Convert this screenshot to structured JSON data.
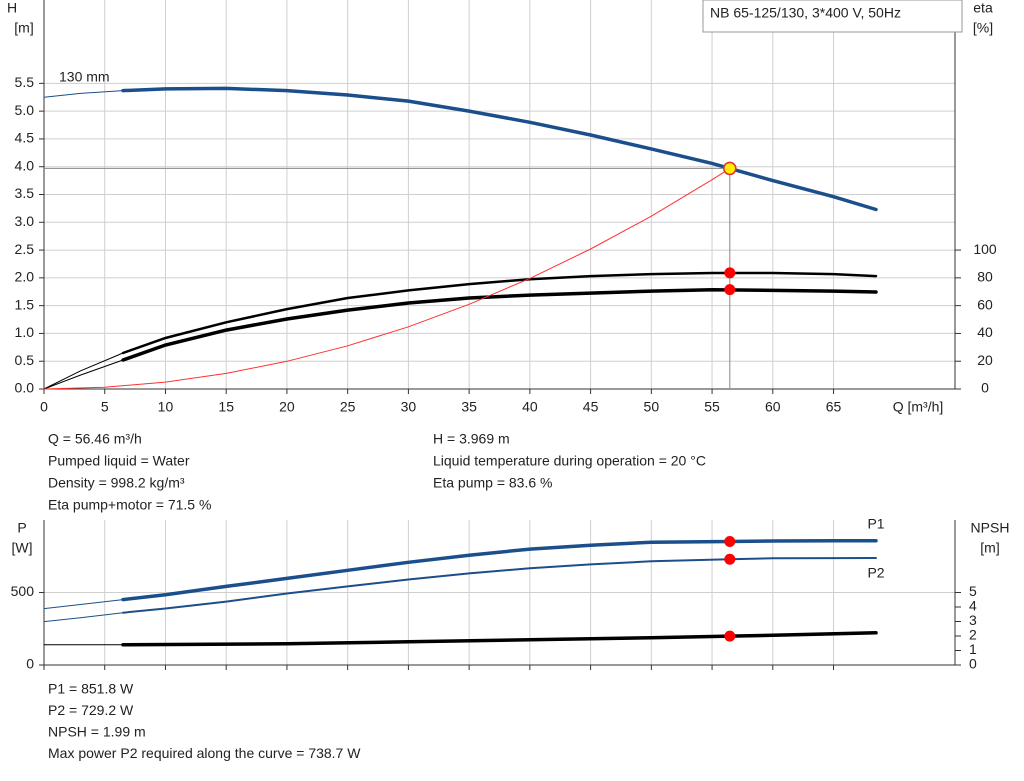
{
  "chart_data": [
    {
      "type": "line",
      "title": "NB 65-125/130, 3*400 V, 50Hz",
      "ylabel": "H",
      "yunit": "[m]",
      "y2label": "eta",
      "y2unit": "[%]",
      "xlabel": "Q [m³/h]",
      "xlim": [
        0,
        75
      ],
      "xticks": [
        0,
        5,
        10,
        15,
        20,
        25,
        30,
        35,
        40,
        45,
        50,
        55,
        60,
        65
      ],
      "ylim": [
        0,
        7
      ],
      "yticks": [
        {
          "value": 0,
          "label": "0.0"
        },
        0.5,
        {
          "value": 1,
          "label": "1.0"
        },
        1.5,
        {
          "value": 2,
          "label": "2.0"
        },
        2.5,
        {
          "value": 3,
          "label": "3.0"
        },
        3.5,
        {
          "value": 4,
          "label": "4.0"
        },
        4.5,
        {
          "value": 5,
          "label": "5.0"
        },
        5.5
      ],
      "y2lim": [
        0,
        280
      ],
      "y2ticks": [
        0,
        20,
        40,
        60,
        80,
        100
      ],
      "grid": true,
      "xtick_labels": true,
      "series": [
        {
          "name": "130 mm",
          "color": "#1b4f8c",
          "width": 3.5,
          "x": [
            6.5,
            10,
            15,
            20,
            25,
            30,
            35,
            40,
            45,
            50,
            55,
            60,
            65,
            68.5
          ],
          "values": [
            5.37,
            5.4,
            5.41,
            5.37,
            5.29,
            5.18,
            5.0,
            4.8,
            4.57,
            4.32,
            4.06,
            3.75,
            3.46,
            3.23
          ]
        },
        {
          "color": "#1b4f8c",
          "width": 1,
          "x": [
            0,
            3,
            6.5
          ],
          "values": [
            5.25,
            5.32,
            5.37
          ]
        },
        {
          "color": "#000000",
          "width": 2.5,
          "axis": "y2",
          "x": [
            6.5,
            10,
            15,
            20,
            25,
            30,
            35,
            40,
            45,
            50,
            55,
            60,
            65,
            68.5
          ],
          "values": [
            25.9,
            36.7,
            48,
            57.5,
            65.5,
            71,
            75.5,
            79,
            81.3,
            82.7,
            83.5,
            83.5,
            82.7,
            81.3
          ]
        },
        {
          "color": "#000000",
          "width": 1,
          "axis": "y2",
          "x": [
            0,
            3,
            6.5
          ],
          "values": [
            0,
            13,
            25.9
          ]
        },
        {
          "color": "#000000",
          "width": 3.5,
          "axis": "y2",
          "x": [
            6.5,
            10,
            15,
            20,
            25,
            30,
            35,
            40,
            45,
            50,
            55,
            60,
            65,
            68.5
          ],
          "values": [
            20.9,
            31.7,
            42.4,
            50.4,
            56.8,
            61.9,
            65.5,
            67.6,
            69,
            70.5,
            71.4,
            71,
            70.5,
            69.8
          ]
        },
        {
          "color": "#000000",
          "width": 1,
          "axis": "y2",
          "x": [
            0,
            3,
            6.5
          ],
          "values": [
            0,
            10,
            20.9
          ]
        },
        {
          "color": "#ff3030",
          "width": 1,
          "x": [
            0,
            5,
            10,
            15,
            20,
            25,
            30,
            35,
            40,
            45,
            50,
            55,
            56.46
          ],
          "values": [
            0,
            0.031,
            0.1245,
            0.28,
            0.498,
            0.778,
            1.12,
            1.525,
            1.99,
            2.52,
            3.11,
            3.767,
            3.969
          ]
        }
      ],
      "points": [
        {
          "x": 56.46,
          "value": 3.969,
          "color": "#ffee00",
          "crosshair": true
        },
        {
          "x": 56.46,
          "value": 83.6,
          "axis": "y2",
          "color": "#ff0000"
        },
        {
          "x": 56.46,
          "value": 71.5,
          "axis": "y2",
          "color": "#ff0000"
        }
      ]
    },
    {
      "type": "line",
      "ylabel": "P",
      "yunit": "[W]",
      "y2label": "NPSH",
      "y2unit": "[m]",
      "xlim": [
        0,
        75
      ],
      "xticks": [
        0,
        5,
        10,
        15,
        20,
        25,
        30,
        35,
        40,
        45,
        50,
        55,
        60,
        65
      ],
      "ylim": [
        0,
        1000
      ],
      "yticks": [
        0,
        500
      ],
      "y2lim": [
        0,
        10
      ],
      "y2ticks": [
        0,
        1,
        2,
        3,
        4,
        5
      ],
      "grid": true,
      "xtick_labels": false,
      "series": [
        {
          "name": "P1",
          "color": "#1b4f8c",
          "width": 3.5,
          "x": [
            6.5,
            10,
            15,
            20,
            25,
            30,
            35,
            40,
            45,
            50,
            56.46,
            60,
            65,
            68.5
          ],
          "values": [
            451,
            485,
            542,
            597,
            653,
            708,
            757,
            799,
            826,
            847,
            851.8,
            855,
            857,
            857
          ]
        },
        {
          "color": "#1b4f8c",
          "width": 1,
          "x": [
            0,
            3,
            6.5
          ],
          "values": [
            389,
            417,
            451
          ]
        },
        {
          "name": "P2",
          "color": "#1b4f8c",
          "width": 2,
          "x": [
            6.5,
            10,
            15,
            20,
            25,
            30,
            35,
            40,
            45,
            50,
            56.46,
            60,
            65,
            68.5
          ],
          "values": [
            361,
            390,
            437,
            493,
            542,
            590,
            632,
            667,
            694,
            715,
            729.2,
            736,
            737,
            738
          ]
        },
        {
          "color": "#1b4f8c",
          "width": 1,
          "x": [
            0,
            3,
            6.5
          ],
          "values": [
            299,
            326,
            361
          ]
        },
        {
          "color": "#000000",
          "width": 3.5,
          "axis": "y2",
          "x": [
            6.5,
            20,
            30,
            40,
            50,
            56.46,
            60,
            68.5
          ],
          "values": [
            1.39,
            1.46,
            1.6,
            1.74,
            1.88,
            1.99,
            2.05,
            2.22
          ]
        },
        {
          "color": "#000000",
          "width": 1,
          "axis": "y2",
          "x": [
            0,
            6.5
          ],
          "values": [
            1.39,
            1.39
          ]
        }
      ],
      "points": [
        {
          "x": 56.46,
          "value": 851.8,
          "color": "#ff0000"
        },
        {
          "x": 56.46,
          "value": 729.2,
          "color": "#ff0000"
        },
        {
          "x": 56.46,
          "value": 1.99,
          "axis": "y2",
          "color": "#ff0000"
        }
      ]
    }
  ],
  "operating_info": {
    "left": [
      "Q = 56.46 m³/h",
      "Pumped liquid = Water",
      "Density = 998.2 kg/m³",
      "Eta pump+motor = 71.5 %"
    ],
    "right": [
      "H = 3.969 m",
      "Liquid temperature during operation = 20 °C",
      "Eta pump = 83.6 %"
    ]
  },
  "power_info": [
    "P1 = 851.8 W",
    "P2 = 729.2 W",
    "NPSH = 1.99 m",
    "Max power P2 required along the curve = 738.7 W"
  ]
}
